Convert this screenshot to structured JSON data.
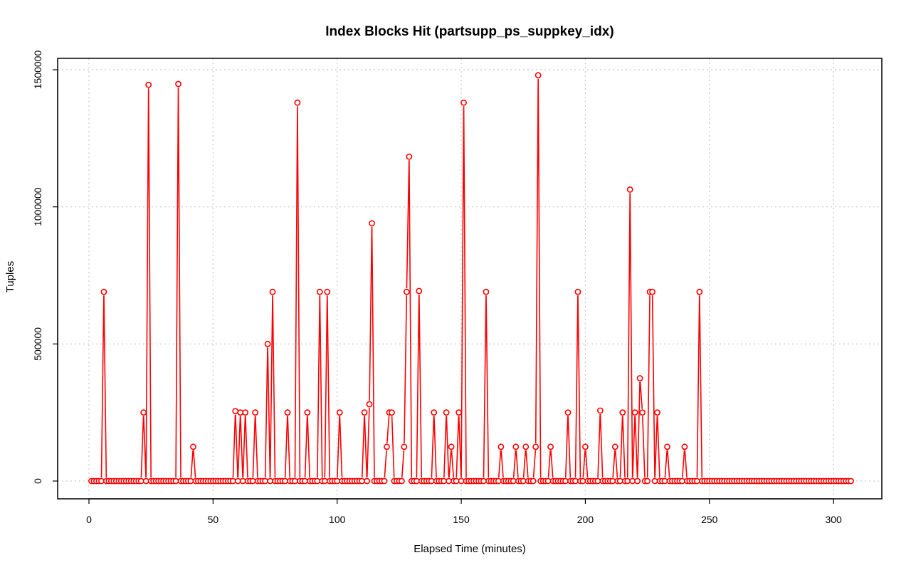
{
  "chart_data": {
    "type": "line",
    "title": "Index Blocks Hit (partsupp_ps_suppkey_idx)",
    "xlabel": "Elapsed Time (minutes)",
    "ylabel": "Tuples",
    "xlim": [
      0,
      307
    ],
    "ylim": [
      0,
      1500000
    ],
    "x_ticks": [
      0,
      50,
      100,
      150,
      200,
      250,
      300
    ],
    "y_ticks": [
      0,
      500000,
      1000000,
      1500000
    ],
    "grid": true,
    "line_color": "#ff0000",
    "point_style": "open-circle",
    "spikes": [
      {
        "x": 6,
        "y": 690000
      },
      {
        "x": 22,
        "y": 250000
      },
      {
        "x": 24,
        "y": 1445000
      },
      {
        "x": 36,
        "y": 1448000
      },
      {
        "x": 42,
        "y": 125000
      },
      {
        "x": 59,
        "y": 255000
      },
      {
        "x": 61,
        "y": 250000
      },
      {
        "x": 63,
        "y": 250000
      },
      {
        "x": 67,
        "y": 250000
      },
      {
        "x": 72,
        "y": 500000
      },
      {
        "x": 74,
        "y": 690000
      },
      {
        "x": 80,
        "y": 250000
      },
      {
        "x": 84,
        "y": 1380000
      },
      {
        "x": 88,
        "y": 250000
      },
      {
        "x": 93,
        "y": 690000
      },
      {
        "x": 96,
        "y": 690000
      },
      {
        "x": 101,
        "y": 250000
      },
      {
        "x": 111,
        "y": 250000
      },
      {
        "x": 113,
        "y": 280000
      },
      {
        "x": 114,
        "y": 940000
      },
      {
        "x": 120,
        "y": 125000
      },
      {
        "x": 121,
        "y": 250000
      },
      {
        "x": 122,
        "y": 250000
      },
      {
        "x": 127,
        "y": 125000
      },
      {
        "x": 128,
        "y": 690000
      },
      {
        "x": 129,
        "y": 1183000
      },
      {
        "x": 133,
        "y": 693000
      },
      {
        "x": 139,
        "y": 250000
      },
      {
        "x": 144,
        "y": 250000
      },
      {
        "x": 146,
        "y": 125000
      },
      {
        "x": 149,
        "y": 250000
      },
      {
        "x": 151,
        "y": 1380000
      },
      {
        "x": 160,
        "y": 690000
      },
      {
        "x": 166,
        "y": 125000
      },
      {
        "x": 172,
        "y": 125000
      },
      {
        "x": 176,
        "y": 125000
      },
      {
        "x": 180,
        "y": 125000
      },
      {
        "x": 181,
        "y": 1480000
      },
      {
        "x": 186,
        "y": 125000
      },
      {
        "x": 193,
        "y": 250000
      },
      {
        "x": 197,
        "y": 690000
      },
      {
        "x": 200,
        "y": 125000
      },
      {
        "x": 206,
        "y": 257000
      },
      {
        "x": 212,
        "y": 125000
      },
      {
        "x": 215,
        "y": 250000
      },
      {
        "x": 218,
        "y": 1063000
      },
      {
        "x": 220,
        "y": 250000
      },
      {
        "x": 222,
        "y": 375000
      },
      {
        "x": 223,
        "y": 250000
      },
      {
        "x": 226,
        "y": 690000
      },
      {
        "x": 227,
        "y": 690000
      },
      {
        "x": 229,
        "y": 250000
      },
      {
        "x": 233,
        "y": 125000
      },
      {
        "x": 240,
        "y": 125000
      },
      {
        "x": 246,
        "y": 690000
      }
    ],
    "baseline_value": 0,
    "x_range_points": [
      1,
      307
    ]
  }
}
